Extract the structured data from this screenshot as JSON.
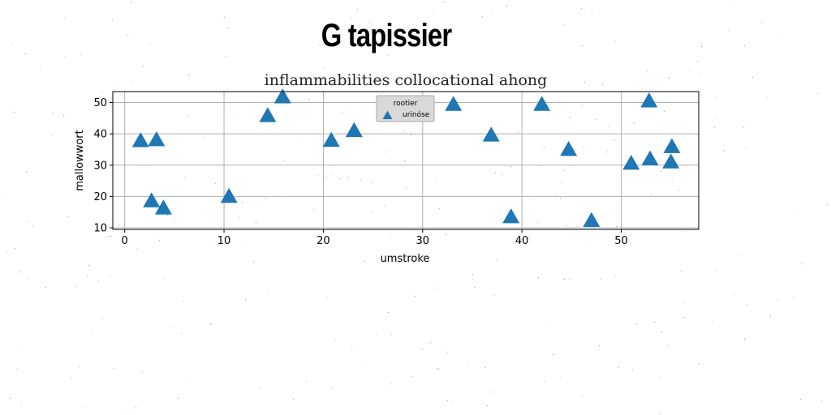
{
  "figure": {
    "suptitle": "G tapissier"
  },
  "colors": {
    "marker": "#1f77b4",
    "grid": "#b0b0b0",
    "legend_bg": "#d9d9d9"
  },
  "chart_data": {
    "type": "scatter",
    "title": "inflammabilities collocational ahong",
    "xlabel": "umstroke",
    "ylabel": "mallowwort",
    "xlim": [
      -1.2,
      57.8
    ],
    "ylim": [
      9.5,
      53.5
    ],
    "xticks": [
      0,
      10,
      20,
      30,
      40,
      50
    ],
    "yticks": [
      10,
      20,
      30,
      40,
      50
    ],
    "grid": true,
    "legend": {
      "title": "rootier",
      "placement": "top-center"
    },
    "series": [
      {
        "name": "urinóse",
        "marker": "triangle-up",
        "points": [
          [
            1.6,
            37.8
          ],
          [
            3.2,
            38.1
          ],
          [
            2.7,
            18.6
          ],
          [
            3.9,
            16.3
          ],
          [
            10.5,
            20.0
          ],
          [
            14.4,
            45.8
          ],
          [
            15.9,
            51.8
          ],
          [
            20.8,
            37.9
          ],
          [
            23.1,
            41.0
          ],
          [
            33.1,
            49.4
          ],
          [
            36.9,
            39.6
          ],
          [
            38.9,
            13.5
          ],
          [
            42.0,
            49.4
          ],
          [
            44.7,
            35.0
          ],
          [
            47.0,
            12.3
          ],
          [
            51.0,
            30.6
          ],
          [
            52.8,
            50.5
          ],
          [
            52.9,
            32.0
          ],
          [
            55.0,
            31.0
          ],
          [
            55.1,
            35.9
          ]
        ]
      }
    ]
  }
}
